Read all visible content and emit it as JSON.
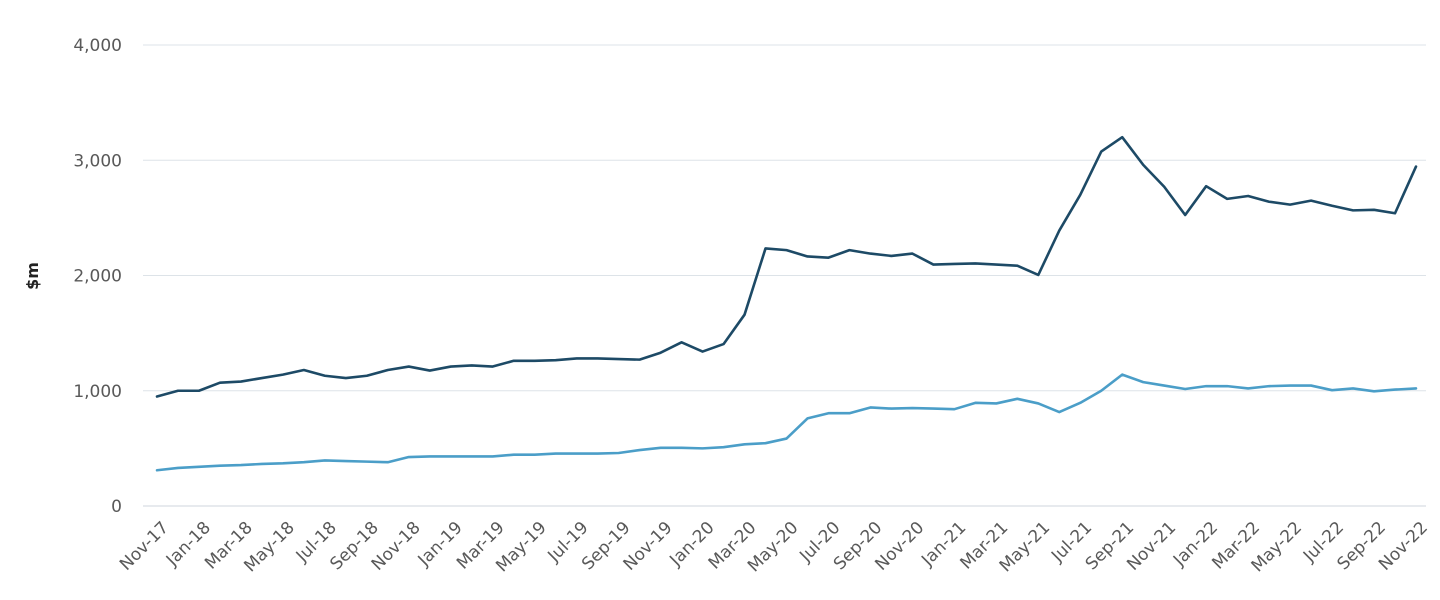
{
  "chart_data": {
    "type": "line",
    "title": "",
    "xlabel": "",
    "ylabel": "$m",
    "ylim": [
      0,
      4000
    ],
    "yticks": [
      0,
      1000,
      2000,
      3000,
      4000
    ],
    "ytick_labels": [
      "0",
      "1,000",
      "2,000",
      "3,000",
      "4,000"
    ],
    "grid": true,
    "x": [
      "Nov-17",
      "Dec-17",
      "Jan-18",
      "Feb-18",
      "Mar-18",
      "Apr-18",
      "May-18",
      "Jun-18",
      "Jul-18",
      "Aug-18",
      "Sep-18",
      "Oct-18",
      "Nov-18",
      "Dec-18",
      "Jan-19",
      "Feb-19",
      "Mar-19",
      "Apr-19",
      "May-19",
      "Jun-19",
      "Jul-19",
      "Aug-19",
      "Sep-19",
      "Oct-19",
      "Nov-19",
      "Dec-19",
      "Jan-20",
      "Feb-20",
      "Mar-20",
      "Apr-20",
      "May-20",
      "Jun-20",
      "Jul-20",
      "Aug-20",
      "Sep-20",
      "Oct-20",
      "Nov-20",
      "Dec-20",
      "Jan-21",
      "Feb-21",
      "Mar-21",
      "Apr-21",
      "May-21",
      "Jun-21",
      "Jul-21",
      "Aug-21",
      "Sep-21",
      "Oct-21",
      "Nov-21",
      "Dec-21",
      "Jan-22",
      "Feb-22",
      "Mar-22",
      "Apr-22",
      "May-22",
      "Jun-22",
      "Jul-22",
      "Aug-22",
      "Sep-22",
      "Oct-22",
      "Nov-22"
    ],
    "xtick_labels": [
      "Nov-17",
      "Jan-18",
      "Mar-18",
      "May-18",
      "Jul-18",
      "Sep-18",
      "Nov-18",
      "Jan-19",
      "Mar-19",
      "May-19",
      "Jul-19",
      "Sep-19",
      "Nov-19",
      "Jan-20",
      "Mar-20",
      "May-20",
      "Jul-20",
      "Sep-20",
      "Nov-20",
      "Jan-21",
      "Mar-21",
      "May-21",
      "Jul-21",
      "Sep-21",
      "Nov-21",
      "Jan-22",
      "Mar-22",
      "May-22",
      "Jul-22",
      "Sep-22",
      "Nov-22"
    ],
    "series": [
      {
        "color": "#1d4a66",
        "values": [
          950,
          1000,
          1000,
          1070,
          1080,
          1110,
          1140,
          1180,
          1130,
          1110,
          1130,
          1180,
          1210,
          1175,
          1210,
          1220,
          1210,
          1260,
          1260,
          1265,
          1280,
          1280,
          1275,
          1270,
          1330,
          1420,
          1340,
          1405,
          1660,
          2235,
          2220,
          2165,
          2155,
          2220,
          2190,
          2170,
          2190,
          2095,
          2100,
          2105,
          2095,
          2085,
          2005,
          2390,
          2700,
          3075,
          3200,
          2960,
          2770,
          2525,
          2775,
          2665,
          2690,
          2640,
          2615,
          2650,
          2605,
          2565,
          2570,
          2540,
          2945
        ]
      },
      {
        "color": "#4b9ec8",
        "values": [
          310,
          330,
          340,
          350,
          355,
          365,
          370,
          380,
          395,
          390,
          385,
          380,
          425,
          430,
          430,
          430,
          430,
          445,
          445,
          455,
          455,
          455,
          460,
          485,
          505,
          505,
          500,
          510,
          535,
          545,
          585,
          760,
          805,
          805,
          855,
          845,
          850,
          845,
          840,
          895,
          890,
          930,
          890,
          815,
          895,
          1000,
          1140,
          1075,
          1045,
          1015,
          1040,
          1040,
          1020,
          1040,
          1045,
          1045,
          1005,
          1020,
          995,
          1010,
          1020
        ]
      }
    ]
  }
}
